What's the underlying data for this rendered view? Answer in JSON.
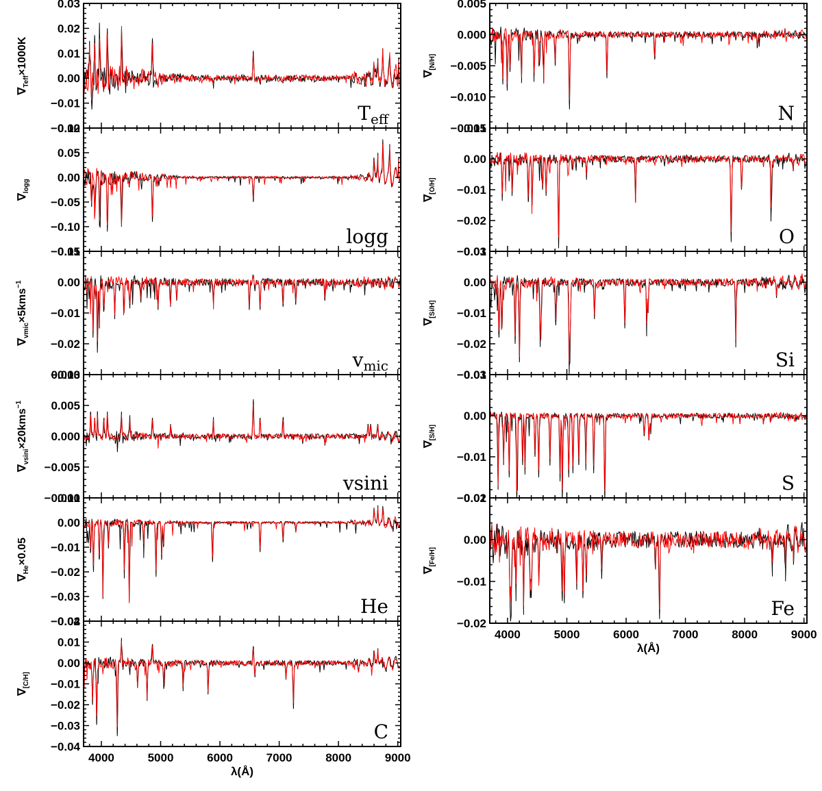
{
  "colors": {
    "series_a": "#000000",
    "series_b": "#ff0000",
    "axes": "#000000"
  },
  "chart_data": [
    {
      "type": "line",
      "panel_tag": "T",
      "panel_tag_sub": "eff",
      "ylabel": "∇",
      "ylabel_sub": "Teff",
      "ylabel_tail": "×1000K",
      "ylabel_tail_sup": "",
      "xlim": [
        3700,
        9050
      ],
      "ylim": [
        -0.02,
        0.03
      ],
      "yticks": [
        -0.02,
        -0.01,
        0.0,
        0.01,
        0.02,
        0.03
      ],
      "ytick_labels": [
        "−0.02",
        "−0.01",
        "0.00",
        "0.01",
        "0.02",
        "0.03"
      ],
      "noise": 0.0012,
      "blue_amp": 0.006,
      "red_amp": 0.002,
      "red_edge_amp": 0.004,
      "lines": [
        [
          3800,
          0.015
        ],
        [
          3835,
          -0.01
        ],
        [
          3889,
          0.016
        ],
        [
          3970,
          0.018
        ],
        [
          4101,
          0.02
        ],
        [
          4340,
          0.02
        ],
        [
          4861,
          0.016
        ],
        [
          6563,
          0.011
        ],
        [
          5890,
          -0.003
        ],
        [
          6678,
          -0.002
        ],
        [
          7065,
          -0.002
        ],
        [
          8598,
          0.006
        ],
        [
          8665,
          0.008
        ],
        [
          8750,
          0.01
        ],
        [
          8863,
          0.009
        ],
        [
          9015,
          0.008
        ]
      ]
    },
    {
      "type": "line",
      "panel_tag": "logg",
      "panel_tag_sub": "",
      "ylabel": "∇",
      "ylabel_sub": "logg",
      "ylabel_tail": "",
      "ylabel_tail_sup": "",
      "xlim": [
        3700,
        9050
      ],
      "ylim": [
        -0.15,
        0.1
      ],
      "yticks": [
        -0.15,
        -0.1,
        -0.05,
        0.0,
        0.05,
        0.1
      ],
      "ytick_labels": [
        "−0.15",
        "−0.10",
        "−0.05",
        "0.00",
        "0.05",
        "0.10"
      ],
      "noise": 0.002,
      "blue_amp": 0.02,
      "red_amp": 0.004,
      "red_edge_amp": 0.02,
      "lines": [
        [
          3835,
          -0.06
        ],
        [
          3889,
          -0.08
        ],
        [
          3970,
          -0.09
        ],
        [
          4101,
          -0.11
        ],
        [
          4340,
          -0.1
        ],
        [
          4471,
          -0.02
        ],
        [
          4861,
          -0.09
        ],
        [
          6563,
          -0.05
        ],
        [
          8598,
          0.04
        ],
        [
          8665,
          0.05
        ],
        [
          8750,
          0.07
        ],
        [
          8863,
          0.06
        ],
        [
          9015,
          0.04
        ]
      ]
    },
    {
      "type": "line",
      "panel_tag": "v",
      "panel_tag_sub": "mic",
      "ylabel": "∇",
      "ylabel_sub": "vmic",
      "ylabel_tail": "×5kms",
      "ylabel_tail_sup": "−1",
      "xlim": [
        3700,
        9050
      ],
      "ylim": [
        -0.03,
        0.01
      ],
      "yticks": [
        -0.03,
        -0.02,
        -0.01,
        0.0,
        0.01
      ],
      "ytick_labels": [
        "−0.03",
        "−0.02",
        "−0.01",
        "0.00",
        "0.01"
      ],
      "noise": 0.0012,
      "blue_amp": 0.002,
      "red_amp": 0.0008,
      "red_edge_amp": 0.001,
      "lines": [
        [
          3860,
          -0.018
        ],
        [
          3934,
          -0.022
        ],
        [
          3968,
          -0.015
        ],
        [
          4045,
          -0.009
        ],
        [
          4226,
          -0.012
        ],
        [
          4383,
          -0.01
        ],
        [
          4481,
          -0.008
        ],
        [
          4668,
          -0.006
        ],
        [
          4957,
          -0.009
        ],
        [
          5167,
          -0.008
        ],
        [
          5270,
          -0.006
        ],
        [
          5890,
          -0.007
        ],
        [
          6495,
          -0.009
        ],
        [
          6563,
          0.002
        ],
        [
          6678,
          -0.009
        ],
        [
          7065,
          -0.008
        ],
        [
          7280,
          -0.007
        ],
        [
          7771,
          -0.006
        ]
      ]
    },
    {
      "type": "line",
      "panel_tag": "vsini",
      "panel_tag_sub": "",
      "ylabel": "∇",
      "ylabel_sub": "vsini",
      "ylabel_tail": "×20kms",
      "ylabel_tail_sup": "−1",
      "xlim": [
        3700,
        9050
      ],
      "ylim": [
        -0.01,
        0.01
      ],
      "yticks": [
        -0.01,
        -0.005,
        0.0,
        0.005,
        0.01
      ],
      "ytick_labels": [
        "−0.010",
        "−0.005",
        "0.000",
        "0.005",
        "0.010"
      ],
      "noise": 0.0004,
      "blue_amp": 0.0008,
      "red_amp": 0.0003,
      "red_edge_amp": 0.0005,
      "lines": [
        [
          3820,
          0.004
        ],
        [
          3889,
          0.003
        ],
        [
          3934,
          0.004
        ],
        [
          4045,
          0.003
        ],
        [
          4101,
          0.004
        ],
        [
          4340,
          0.004
        ],
        [
          4481,
          0.003
        ],
        [
          4861,
          0.003
        ],
        [
          5167,
          0.002
        ],
        [
          5890,
          0.003
        ],
        [
          6563,
          0.006
        ],
        [
          6678,
          0.003
        ],
        [
          7065,
          0.003
        ],
        [
          7771,
          -0.0015
        ],
        [
          8498,
          0.002
        ],
        [
          8542,
          0.002
        ],
        [
          8662,
          0.002
        ]
      ]
    },
    {
      "type": "line",
      "panel_tag": "He",
      "panel_tag_sub": "",
      "ylabel": "∇",
      "ylabel_sub": "He",
      "ylabel_tail": "×0.05",
      "ylabel_tail_sup": "",
      "xlim": [
        3700,
        9050
      ],
      "ylim": [
        -0.04,
        0.01
      ],
      "yticks": [
        -0.04,
        -0.03,
        -0.02,
        -0.01,
        0.0,
        0.01
      ],
      "ytick_labels": [
        "−0.04",
        "−0.03",
        "−0.02",
        "−0.01",
        "0.00",
        "0.01"
      ],
      "noise": 0.0004,
      "blue_amp": 0.002,
      "red_amp": 0.0008,
      "red_edge_amp": 0.002,
      "lines": [
        [
          3820,
          -0.012
        ],
        [
          3867,
          -0.02
        ],
        [
          3964,
          -0.015
        ],
        [
          4026,
          -0.031
        ],
        [
          4121,
          -0.01
        ],
        [
          4388,
          -0.02
        ],
        [
          4471,
          -0.032
        ],
        [
          4713,
          -0.01
        ],
        [
          4922,
          -0.022
        ],
        [
          5016,
          -0.015
        ],
        [
          5048,
          -0.01
        ],
        [
          5876,
          -0.016
        ],
        [
          6678,
          -0.012
        ],
        [
          7065,
          -0.008
        ],
        [
          7281,
          -0.004
        ],
        [
          8598,
          0.006
        ],
        [
          8665,
          0.007
        ],
        [
          8750,
          0.006
        ]
      ]
    },
    {
      "type": "line",
      "panel_tag": "C",
      "panel_tag_sub": "",
      "ylabel": "∇",
      "ylabel_sub": "[C/H]",
      "ylabel_tail": "",
      "ylabel_tail_sup": "",
      "xlim": [
        3700,
        9050
      ],
      "ylim": [
        -0.04,
        0.02
      ],
      "yticks": [
        -0.04,
        -0.03,
        -0.02,
        -0.01,
        0.0,
        0.01,
        0.02
      ],
      "ytick_labels": [
        "−0.04",
        "−0.03",
        "−0.02",
        "−0.01",
        "0.00",
        "0.01",
        "0.02"
      ],
      "noise": 0.0012,
      "blue_amp": 0.003,
      "red_amp": 0.001,
      "red_edge_amp": 0.003,
      "lines": [
        [
          3850,
          -0.02
        ],
        [
          3920,
          -0.029
        ],
        [
          4268,
          -0.035
        ],
        [
          4340,
          0.012
        ],
        [
          4610,
          -0.012
        ],
        [
          4771,
          -0.018
        ],
        [
          4861,
          0.009
        ],
        [
          5052,
          -0.012
        ],
        [
          5380,
          -0.011
        ],
        [
          5800,
          -0.015
        ],
        [
          6563,
          0.008
        ],
        [
          6588,
          -0.006
        ],
        [
          7115,
          -0.008
        ],
        [
          7240,
          -0.022
        ],
        [
          8335,
          -0.004
        ],
        [
          8598,
          0.006
        ],
        [
          8665,
          0.007
        ]
      ]
    },
    {
      "type": "line",
      "panel_tag": "N",
      "panel_tag_sub": "",
      "ylabel": "∇",
      "ylabel_sub": "[N/H]",
      "ylabel_tail": "",
      "ylabel_tail_sup": "",
      "xlim": [
        3700,
        9050
      ],
      "ylim": [
        -0.015,
        0.005
      ],
      "yticks": [
        -0.015,
        -0.01,
        -0.005,
        0.0,
        0.005
      ],
      "ytick_labels": [
        "−0.015",
        "−0.010",
        "−0.005",
        "0.000",
        "0.005"
      ],
      "noise": 0.0005,
      "blue_amp": 0.0012,
      "red_amp": 0.0002,
      "red_edge_amp": 0.0004,
      "lines": [
        [
          3995,
          -0.009
        ],
        [
          4041,
          -0.006
        ],
        [
          4236,
          -0.007
        ],
        [
          4447,
          -0.007
        ],
        [
          4530,
          -0.005
        ],
        [
          4607,
          -0.006
        ],
        [
          4803,
          -0.005
        ],
        [
          5045,
          -0.012
        ],
        [
          5676,
          -0.007
        ],
        [
          6482,
          -0.004
        ],
        [
          8680,
          0.001
        ],
        [
          8216,
          -0.002
        ],
        [
          3920,
          -0.008
        ]
      ]
    },
    {
      "type": "line",
      "panel_tag": "O",
      "panel_tag_sub": "",
      "ylabel": "∇",
      "ylabel_sub": "[O/H]",
      "ylabel_tail": "",
      "ylabel_tail_sup": "",
      "xlim": [
        3700,
        9050
      ],
      "ylim": [
        -0.03,
        0.01
      ],
      "yticks": [
        -0.03,
        -0.02,
        -0.01,
        0.0,
        0.01
      ],
      "ytick_labels": [
        "−0.03",
        "−0.02",
        "−0.01",
        "0.00",
        "0.01"
      ],
      "noise": 0.0012,
      "blue_amp": 0.002,
      "red_amp": 0.0005,
      "red_edge_amp": 0.001,
      "lines": [
        [
          3912,
          -0.013
        ],
        [
          4076,
          -0.012
        ],
        [
          4349,
          -0.014
        ],
        [
          4415,
          -0.015
        ],
        [
          4591,
          -0.01
        ],
        [
          4650,
          -0.012
        ],
        [
          4861,
          -0.029
        ],
        [
          5330,
          -0.006
        ],
        [
          6158,
          -0.014
        ],
        [
          7772,
          -0.027
        ],
        [
          7947,
          -0.01
        ],
        [
          8446,
          -0.018
        ],
        [
          8820,
          -0.004
        ]
      ]
    },
    {
      "type": "line",
      "panel_tag": "Si",
      "panel_tag_sub": "",
      "ylabel": "∇",
      "ylabel_sub": "[Si/H]",
      "ylabel_tail": "",
      "ylabel_tail_sup": "",
      "xlim": [
        3700,
        9050
      ],
      "ylim": [
        -0.03,
        0.01
      ],
      "yticks": [
        -0.03,
        -0.02,
        -0.01,
        0.0,
        0.01
      ],
      "ytick_labels": [
        "−0.03",
        "−0.02",
        "−0.01",
        "0.00",
        "0.01"
      ],
      "noise": 0.0012,
      "blue_amp": 0.0015,
      "red_amp": 0.0008,
      "red_edge_amp": 0.002,
      "lines": [
        [
          3856,
          -0.018
        ],
        [
          3905,
          -0.015
        ],
        [
          4128,
          -0.02
        ],
        [
          4200,
          -0.026
        ],
        [
          4552,
          -0.019
        ],
        [
          4567,
          -0.012
        ],
        [
          4813,
          -0.014
        ],
        [
          5041,
          -0.027
        ],
        [
          5056,
          -0.018
        ],
        [
          5466,
          -0.012
        ],
        [
          5978,
          -0.015
        ],
        [
          6347,
          -0.014
        ],
        [
          6371,
          -0.01
        ],
        [
          7849,
          -0.02
        ],
        [
          8536,
          -0.005
        ]
      ]
    },
    {
      "type": "line",
      "panel_tag": "S",
      "panel_tag_sub": "",
      "ylabel": "∇",
      "ylabel_sub": "[S/H]",
      "ylabel_tail": "",
      "ylabel_tail_sup": "",
      "xlim": [
        3700,
        9050
      ],
      "ylim": [
        -0.02,
        0.01
      ],
      "yticks": [
        -0.02,
        -0.01,
        0.0,
        0.01
      ],
      "ytick_labels": [
        "−0.02",
        "−0.01",
        "0.00",
        "0.01"
      ],
      "noise": 0.0006,
      "blue_amp": 0.0008,
      "red_amp": 0.0003,
      "red_edge_amp": 0.0005,
      "lines": [
        [
          3840,
          -0.018
        ],
        [
          3933,
          -0.012
        ],
        [
          4028,
          -0.015
        ],
        [
          4153,
          -0.013
        ],
        [
          4162,
          -0.016
        ],
        [
          4253,
          -0.012
        ],
        [
          4294,
          -0.014
        ],
        [
          4463,
          -0.01
        ],
        [
          4525,
          -0.015
        ],
        [
          4716,
          -0.012
        ],
        [
          4885,
          -0.016
        ],
        [
          4925,
          -0.02
        ],
        [
          5032,
          -0.015
        ],
        [
          5103,
          -0.014
        ],
        [
          5201,
          -0.012
        ],
        [
          5320,
          -0.013
        ],
        [
          5453,
          -0.014
        ],
        [
          5640,
          -0.021
        ],
        [
          6305,
          -0.005
        ],
        [
          6385,
          -0.006
        ],
        [
          6415,
          -0.004
        ],
        [
          8314,
          -0.002
        ]
      ]
    },
    {
      "type": "line",
      "panel_tag": "Fe",
      "panel_tag_sub": "",
      "ylabel": "∇",
      "ylabel_sub": "[Fe/H]",
      "ylabel_tail": "",
      "ylabel_tail_sup": "",
      "xlim": [
        3700,
        9050
      ],
      "ylim": [
        -0.02,
        0.01
      ],
      "yticks": [
        -0.02,
        -0.01,
        0.0,
        0.01
      ],
      "ytick_labels": [
        "−0.02",
        "−0.01",
        "0.00",
        "0.01"
      ],
      "noise": 0.002,
      "blue_amp": 0.003,
      "red_amp": 0.0012,
      "red_edge_amp": 0.002,
      "lines": [
        [
          4045,
          -0.017
        ],
        [
          4063,
          -0.014
        ],
        [
          4144,
          -0.012
        ],
        [
          4271,
          -0.018
        ],
        [
          4383,
          -0.014
        ],
        [
          4404,
          -0.012
        ],
        [
          4528,
          -0.01
        ],
        [
          4920,
          -0.014
        ],
        [
          4957,
          -0.015
        ],
        [
          5167,
          -0.012
        ],
        [
          5270,
          -0.014
        ],
        [
          5328,
          -0.01
        ],
        [
          5586,
          -0.008
        ],
        [
          6563,
          -0.019
        ],
        [
          6494,
          -0.007
        ],
        [
          8468,
          -0.006
        ],
        [
          8688,
          -0.007
        ],
        [
          8824,
          -0.006
        ]
      ]
    }
  ],
  "x_axis": {
    "label": "λ(Å)",
    "ticks": [
      4000,
      5000,
      6000,
      7000,
      8000,
      9000
    ],
    "tick_labels": [
      "4000",
      "5000",
      "6000",
      "7000",
      "8000",
      "9000"
    ]
  }
}
